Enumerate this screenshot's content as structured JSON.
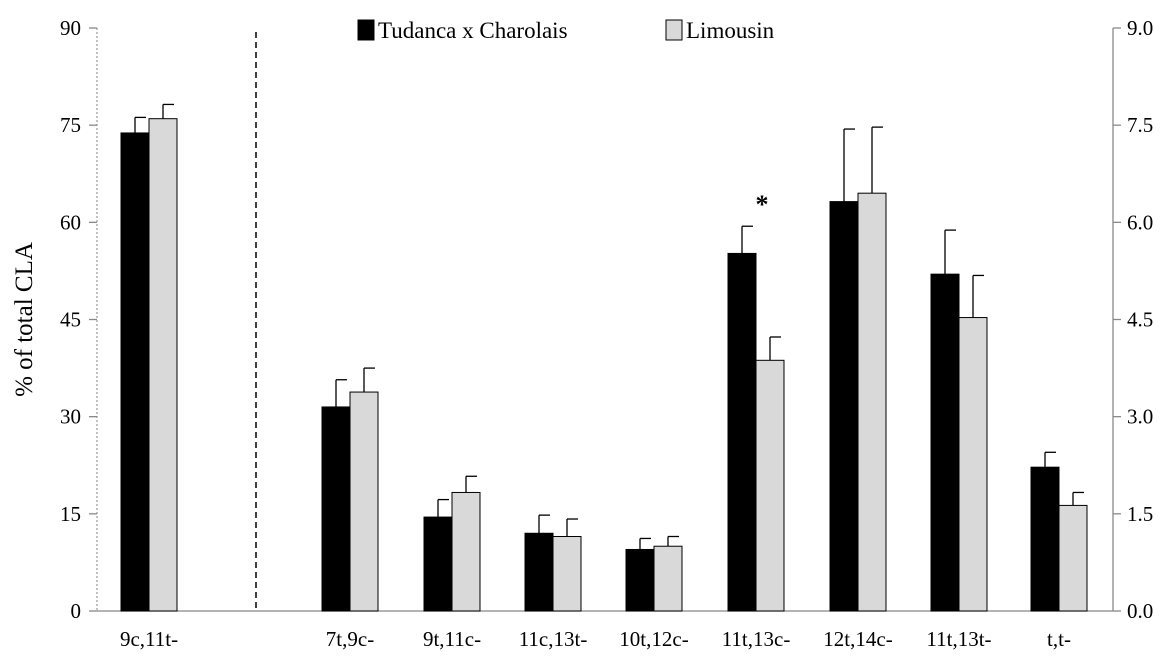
{
  "chart_data": {
    "type": "bar",
    "ylabel": "% of total CLA",
    "categories": [
      "9c,11t-",
      "7t,9c-",
      "9t,11c-",
      "11c,13t-",
      "10t,12c-",
      "11t,13c-",
      "12t,14c-",
      "11t,13t-",
      "t,t-"
    ],
    "left_axis": {
      "ylim": [
        0,
        90
      ],
      "ticks": [
        "0",
        "15",
        "30",
        "45",
        "60",
        "75",
        "90"
      ],
      "applies_to": [
        "9c,11t-"
      ]
    },
    "right_axis": {
      "ylim": [
        0,
        9
      ],
      "ticks": [
        "0.0",
        "1.5",
        "3.0",
        "4.5",
        "6.0",
        "7.5",
        "9.0"
      ],
      "applies_to": [
        "7t,9c-",
        "9t,11c-",
        "11c,13t-",
        "10t,12c-",
        "11t,13c-",
        "12t,14c-",
        "11t,13t-",
        "t,t-"
      ]
    },
    "series": [
      {
        "name": "Tudanca x Charolais",
        "color": "#000000",
        "values": [
          73.8,
          3.15,
          1.45,
          1.2,
          0.95,
          5.52,
          6.32,
          5.2,
          2.22
        ],
        "errors": [
          2.4,
          0.42,
          0.27,
          0.28,
          0.17,
          0.42,
          1.12,
          0.68,
          0.23
        ]
      },
      {
        "name": "Limousin",
        "color": "#d9d9d9",
        "values": [
          76.0,
          3.38,
          1.83,
          1.15,
          1.0,
          3.87,
          6.45,
          4.53,
          1.63
        ],
        "errors": [
          2.2,
          0.37,
          0.25,
          0.27,
          0.15,
          0.36,
          1.02,
          0.65,
          0.2
        ]
      }
    ],
    "annotations": [
      {
        "category": "11t,13c-",
        "text": "*"
      }
    ],
    "legend_position": "top-center",
    "grid": false
  }
}
